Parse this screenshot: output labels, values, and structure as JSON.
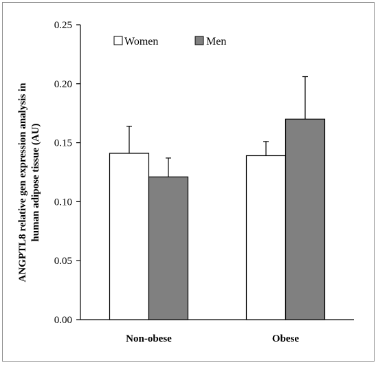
{
  "chart_data": {
    "type": "bar",
    "categories": [
      "Non-obese",
      "Obese"
    ],
    "series": [
      {
        "name": "Women",
        "values": [
          0.141,
          0.139
        ],
        "error": [
          0.023,
          0.012
        ],
        "color": "#ffffff"
      },
      {
        "name": "Men",
        "values": [
          0.121,
          0.17
        ],
        "error": [
          0.016,
          0.036
        ],
        "color": "#808080"
      }
    ],
    "ylabel_lines": [
      "ANGPTL8 relative gen expression analysis in",
      "human adipose tissue (AU)"
    ],
    "ylim": [
      0,
      0.25
    ],
    "yticks": [
      "0.00",
      "0.05",
      "0.10",
      "0.15",
      "0.20",
      "0.25"
    ],
    "ytick_values": [
      0,
      0.05,
      0.1,
      0.15,
      0.2,
      0.25
    ],
    "grid": false,
    "legend_position": "top-left"
  }
}
